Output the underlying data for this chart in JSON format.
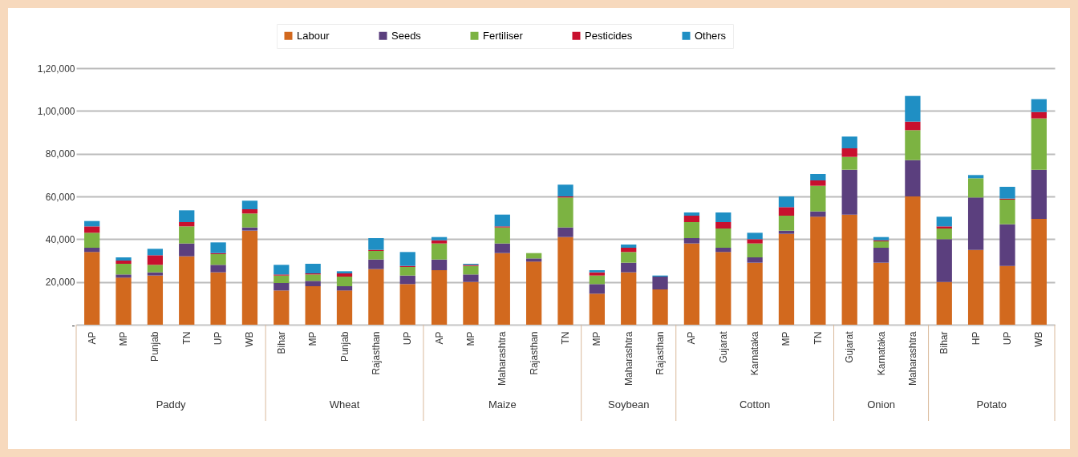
{
  "chart_data": {
    "type": "bar",
    "stacked": true,
    "categories": [
      "AP",
      "MP",
      "Punjab",
      "TN",
      "UP",
      "WB",
      "Bihar",
      "MP",
      "Punjab",
      "Rajasthan",
      "UP",
      "AP",
      "MP",
      "Maharashtra",
      "Rajasthan",
      "TN",
      "MP",
      "Maharashtra",
      "Rajasthan",
      "AP",
      "Gujarat",
      "Karnataka",
      "MP",
      "TN",
      "Gujarat",
      "Karnataka",
      "Maharashtra",
      "Bihar",
      "HP",
      "UP",
      "WB"
    ],
    "annotations": [
      "Paddy",
      "Wheat",
      "Maize",
      "Soybean",
      "Cotton",
      "Onion",
      "Potato"
    ],
    "series": [
      {
        "name": "Labour",
        "color": "#d2691e",
        "values": [
          34000,
          22000,
          23000,
          32000,
          24500,
          44000,
          16000,
          18000,
          16000,
          26000,
          19000,
          25500,
          20000,
          33500,
          29500,
          41000,
          14500,
          24500,
          16500,
          38000,
          34000,
          29000,
          42500,
          50500,
          51500,
          29000,
          60000,
          20000,
          35000,
          27500,
          49500
        ]
      },
      {
        "name": "Seeds",
        "color": "#5b3f7e",
        "values": [
          2000,
          1500,
          1500,
          6000,
          3500,
          1500,
          3500,
          2500,
          2000,
          4500,
          4000,
          5000,
          3500,
          4500,
          1500,
          4500,
          4500,
          4500,
          6000,
          2500,
          2000,
          2500,
          1500,
          2500,
          21000,
          7000,
          17000,
          20000,
          24500,
          19500,
          23000
        ]
      },
      {
        "name": "Fertiliser",
        "color": "#7cb342",
        "values": [
          7000,
          5000,
          3500,
          8000,
          5000,
          6500,
          3500,
          3000,
          4500,
          4000,
          4000,
          7500,
          4000,
          7500,
          2500,
          14000,
          4000,
          5000,
          0,
          7500,
          9000,
          6500,
          7000,
          12000,
          6000,
          3000,
          14000,
          5000,
          9000,
          11500,
          24000
        ]
      },
      {
        "name": "Pesticides",
        "color": "#c8102e",
        "values": [
          3000,
          1500,
          4500,
          2000,
          500,
          2000,
          500,
          500,
          1500,
          500,
          500,
          1500,
          500,
          500,
          0,
          500,
          1500,
          2000,
          0,
          3000,
          3000,
          2000,
          4000,
          2500,
          4000,
          500,
          4000,
          1000,
          0,
          500,
          3000
        ]
      },
      {
        "name": "Others",
        "color": "#1f8fc4",
        "values": [
          2500,
          1500,
          3000,
          5500,
          5000,
          4000,
          4500,
          4500,
          1000,
          5500,
          6500,
          1500,
          500,
          5500,
          0,
          5500,
          1000,
          1500,
          500,
          1500,
          4500,
          3000,
          5000,
          3000,
          5500,
          1500,
          12000,
          4500,
          1500,
          5500,
          6000
        ]
      }
    ],
    "ylim": [
      0,
      120000
    ],
    "yticks": [
      {
        "value": 0,
        "label": "-"
      },
      {
        "value": 20000,
        "label": "20,000"
      },
      {
        "value": 40000,
        "label": "40,000"
      },
      {
        "value": 60000,
        "label": "60,000"
      },
      {
        "value": 80000,
        "label": "80,000"
      },
      {
        "value": 100000,
        "label": "1,00,000"
      },
      {
        "value": 120000,
        "label": "1,20,000"
      }
    ],
    "grid": "y",
    "legend": "top"
  }
}
